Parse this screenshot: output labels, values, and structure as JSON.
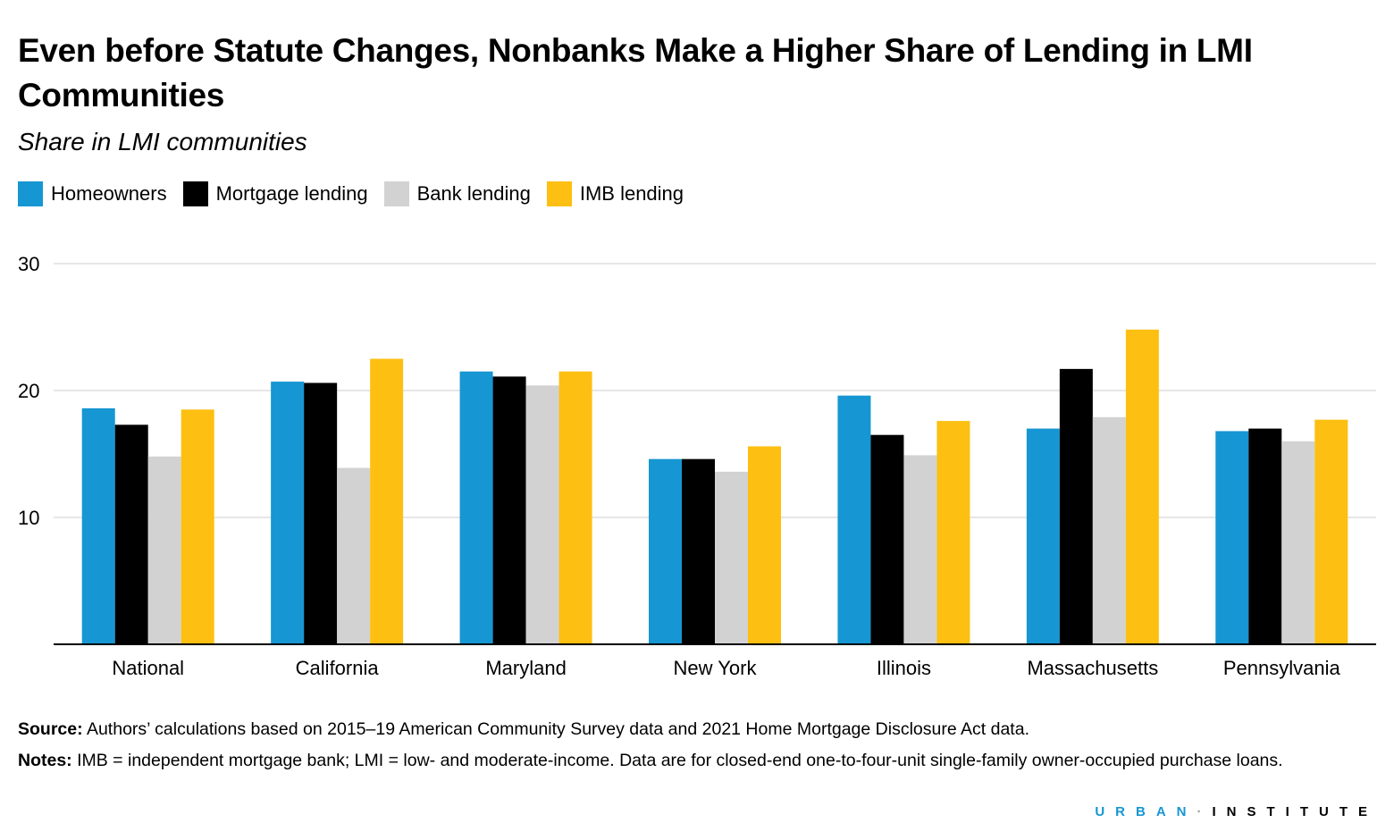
{
  "chart_data": {
    "type": "bar",
    "title": "Even before Statute Changes, Nonbanks Make a Higher Share of Lending in LMI Communities",
    "subtitle": "Share in LMI communities",
    "categories": [
      "National",
      "California",
      "Maryland",
      "New York",
      "Illinois",
      "Massachusetts",
      "Pennsylvania"
    ],
    "series": [
      {
        "name": "Homeowners",
        "color": "#1696d2",
        "values": [
          18.6,
          20.7,
          21.5,
          14.6,
          19.6,
          17.0,
          16.8
        ]
      },
      {
        "name": "Mortgage lending",
        "color": "#000000",
        "values": [
          17.3,
          20.6,
          21.1,
          14.6,
          16.5,
          21.7,
          17.0
        ]
      },
      {
        "name": "Bank lending",
        "color": "#d2d2d2",
        "values": [
          14.8,
          13.9,
          20.4,
          13.6,
          14.9,
          17.9,
          16.0
        ]
      },
      {
        "name": "IMB lending",
        "color": "#fdbf11",
        "values": [
          18.5,
          22.5,
          21.5,
          15.6,
          17.6,
          24.8,
          17.7
        ]
      }
    ],
    "yticks": [
      10,
      20,
      30
    ],
    "ylim": [
      0,
      30
    ],
    "xlabel": "",
    "ylabel": "",
    "legend": "top-left",
    "grid": true
  },
  "footer": {
    "source_label": "Source:",
    "source_text": " Authors’ calculations based on 2015–19 American Community Survey data and 2021 Home Mortgage Disclosure Act data.",
    "notes_label": "Notes:",
    "notes_text": " IMB = independent mortgage bank; LMI = low- and moderate-income. Data are for closed-end one-to-four-unit single-family owner-occupied purchase loans."
  },
  "logo": {
    "part1": "URBAN",
    "sep": "·",
    "part2": "INSTITUTE"
  }
}
